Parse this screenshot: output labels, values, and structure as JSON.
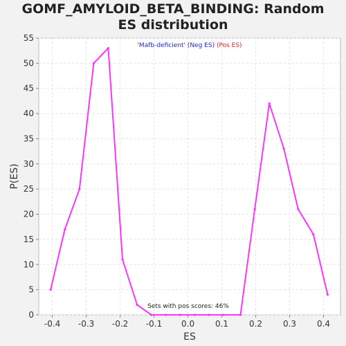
{
  "chart_data": {
    "type": "line",
    "title_line1": "GOMF_AMYLOID_BETA_BINDING: Random",
    "title_line2": "ES distribution",
    "xlabel": "ES",
    "ylabel": "P(ES)",
    "xlim": [
      -0.44,
      0.45
    ],
    "ylim": [
      0,
      55
    ],
    "xticks": [
      -0.4,
      -0.3,
      -0.2,
      -0.1,
      0.0,
      0.1,
      0.2,
      0.3,
      0.4
    ],
    "xtick_labels": [
      "-0.4",
      "-0.3",
      "-0.2",
      "-0.1",
      "0.0",
      "0.1",
      "0.2",
      "0.3",
      "0.4"
    ],
    "yticks": [
      0,
      5,
      10,
      15,
      20,
      25,
      30,
      35,
      40,
      45,
      50,
      55
    ],
    "ytick_labels": [
      "0",
      "5",
      "10",
      "15",
      "20",
      "25",
      "30",
      "35",
      "40",
      "45",
      "50",
      "55"
    ],
    "grid": true,
    "legend": {
      "placement": "top-center",
      "neg_label": "'Mafb-deficient' (Neg ES)",
      "pos_label": "(Pos ES)",
      "neg_color": "#2222cc",
      "pos_color": "#dd2222"
    },
    "annotation": "Sets with pos scores: 46%",
    "series": [
      {
        "color": "#ff33ff",
        "x": [
          -0.405,
          -0.363,
          -0.32,
          -0.278,
          -0.235,
          -0.193,
          -0.15,
          -0.108,
          -0.065,
          -0.023,
          0.02,
          0.062,
          0.105,
          0.155,
          0.197,
          0.24,
          0.283,
          0.325,
          0.37,
          0.412
        ],
        "y": [
          5,
          17,
          25,
          50,
          53,
          11,
          2,
          0,
          0,
          0,
          0,
          0,
          0,
          0,
          21,
          42,
          33,
          21,
          16,
          4
        ]
      }
    ]
  }
}
